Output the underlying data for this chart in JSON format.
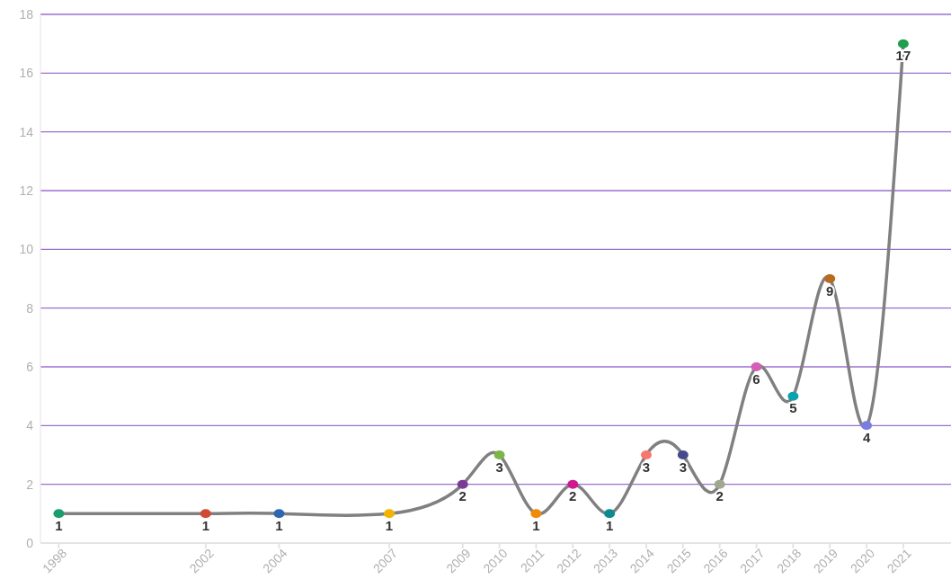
{
  "chart_data": {
    "type": "line",
    "x": [
      1998,
      2002,
      2004,
      2007,
      2009,
      2010,
      2011,
      2012,
      2013,
      2014,
      2015,
      2016,
      2017,
      2018,
      2019,
      2020,
      2021
    ],
    "series": [
      {
        "color": "#808080",
        "values": [
          1,
          1,
          1,
          1,
          2,
          3,
          1,
          2,
          1,
          3,
          3,
          2,
          6,
          5,
          9,
          4,
          17
        ],
        "colors": [
          "#1a9e6e",
          "#d04a35",
          "#2e66b0",
          "#f2b400",
          "#7b3a96",
          "#7ab648",
          "#f08a0b",
          "#d0198e",
          "#0c8a8f",
          "#f7776e",
          "#464a8c",
          "#a0a890",
          "#d35fb7",
          "#0aa2b0",
          "#b86a1e",
          "#7a7de0",
          "#1f9e4e"
        ]
      }
    ],
    "xlim": [
      1997.5,
      2022.3
    ],
    "xticks": [
      1998,
      2002,
      2004,
      2007,
      2009,
      2010,
      2011,
      2012,
      2013,
      2014,
      2015,
      2016,
      2017,
      2018,
      2019,
      2020,
      2021
    ],
    "ylim": [
      0,
      18
    ],
    "yticks": [
      0,
      2,
      4,
      6,
      8,
      10,
      12,
      14,
      16,
      18
    ],
    "grid": "y",
    "marker": "circle",
    "line_style": "solid",
    "data_labels": true
  }
}
